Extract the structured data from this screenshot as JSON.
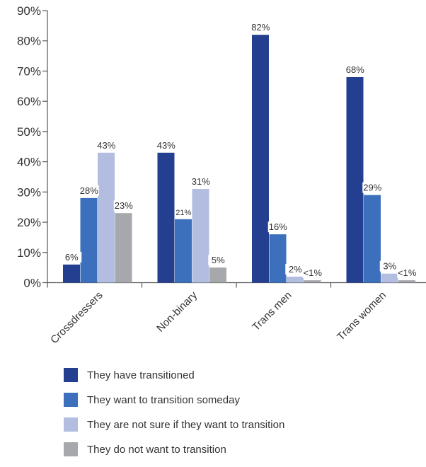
{
  "chart_data": {
    "type": "bar",
    "categories": [
      "Crossdressers",
      "Non-binary",
      "Trans men",
      "Trans women"
    ],
    "series": [
      {
        "name": "They have transitioned",
        "color": "#243f8f",
        "values": [
          6,
          43,
          82,
          68
        ],
        "labels": [
          "6%",
          "43%",
          "82%",
          "68%"
        ]
      },
      {
        "name": "They want to transition someday",
        "color": "#3c70bc",
        "values": [
          28,
          21,
          16,
          29
        ],
        "labels": [
          "28%",
          "21%",
          "16%",
          "29%"
        ]
      },
      {
        "name": "They are not sure if they want to transition",
        "color": "#b2bde0",
        "values": [
          43,
          31,
          2,
          3
        ],
        "labels": [
          "43%",
          "31%",
          "2%",
          "3%"
        ]
      },
      {
        "name": "They do not want to transition",
        "color": "#a7a8ab",
        "values": [
          23,
          5,
          0.8,
          0.8
        ],
        "labels": [
          "23%",
          "5%",
          "<1%",
          "<1%"
        ]
      }
    ],
    "yticks": [
      "0%",
      "10%",
      "20%",
      "30%",
      "40%",
      "50%",
      "60%",
      "70%",
      "80%",
      "90%"
    ],
    "ylim": [
      0,
      90
    ],
    "xlabel": "",
    "ylabel": "",
    "title": "",
    "grid": false,
    "legend_position": "bottom"
  }
}
